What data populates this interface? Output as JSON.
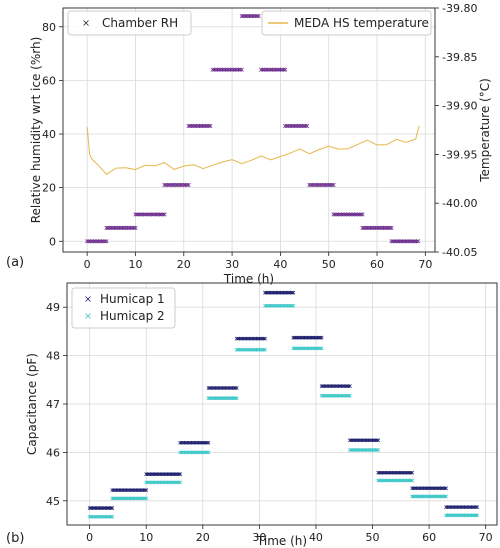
{
  "chart_data": [
    {
      "type": "scatter",
      "panel_label": "(a)",
      "xlabel": "Time (h)",
      "ylabel": "Relative humidity wrt ice (%rh)",
      "y2label": "Temperature (°C)",
      "xlim": [
        -5,
        72
      ],
      "ylim": [
        -4,
        87
      ],
      "y2lim": [
        -40.05,
        -39.8
      ],
      "xticks": [
        0,
        10,
        20,
        30,
        40,
        50,
        60,
        70
      ],
      "yticks": [
        0,
        20,
        40,
        60,
        80
      ],
      "y2ticks": [
        "-39.80",
        "-39.85",
        "-39.90",
        "-39.95",
        "-40.00",
        "-40.05"
      ],
      "grid": true,
      "legend": "top",
      "series": [
        {
          "name": "Chamber RH",
          "color": "#6a2a8c",
          "marker": "x",
          "steps": [
            {
              "x0": 0,
              "x1": 4,
              "y": 0
            },
            {
              "x0": 4,
              "x1": 10,
              "y": 5
            },
            {
              "x0": 10,
              "x1": 16,
              "y": 10
            },
            {
              "x0": 16,
              "x1": 21,
              "y": 21
            },
            {
              "x0": 21,
              "x1": 25.5,
              "y": 43
            },
            {
              "x0": 26,
              "x1": 32,
              "y": 64
            },
            {
              "x0": 32,
              "x1": 35.5,
              "y": 84
            },
            {
              "x0": 36,
              "x1": 41,
              "y": 64
            },
            {
              "x0": 41,
              "x1": 45.5,
              "y": 43
            },
            {
              "x0": 46,
              "x1": 51,
              "y": 21
            },
            {
              "x0": 51,
              "x1": 57,
              "y": 10
            },
            {
              "x0": 57,
              "x1": 63,
              "y": 5
            },
            {
              "x0": 63,
              "x1": 68.5,
              "y": 0
            }
          ]
        },
        {
          "name": "MEDA HS temperature",
          "color": "#e6b84a",
          "axis": "right",
          "x": [
            0,
            0.5,
            1,
            2,
            4,
            6,
            8,
            10,
            12,
            14,
            16,
            18,
            20,
            22,
            24,
            26,
            28,
            30,
            32,
            34,
            36,
            38,
            40,
            42,
            44,
            46,
            48,
            50,
            52,
            54,
            56,
            58,
            60,
            62,
            64,
            66,
            68,
            68.7
          ],
          "y": [
            -39.922,
            -39.95,
            -39.955,
            -39.963,
            -39.968,
            -39.964,
            -39.966,
            -39.962,
            -39.96,
            -39.963,
            -39.962,
            -39.963,
            -39.962,
            -39.963,
            -39.961,
            -39.96,
            -39.959,
            -39.959,
            -39.957,
            -39.956,
            -39.954,
            -39.952,
            -39.951,
            -39.95,
            -39.948,
            -39.947,
            -39.945,
            -39.944,
            -39.941,
            -39.943,
            -39.941,
            -39.939,
            -39.938,
            -39.94,
            -39.937,
            -39.934,
            -39.933,
            -39.922
          ]
        }
      ]
    },
    {
      "type": "scatter",
      "panel_label": "(b)",
      "xlabel": "Time (h)",
      "ylabel": "Capacitance (pF)",
      "xlim": [
        -4,
        72
      ],
      "ylim": [
        44.5,
        49.5
      ],
      "xticks": [
        0,
        10,
        20,
        30,
        40,
        50,
        60,
        70
      ],
      "yticks": [
        45,
        46,
        47,
        48,
        49
      ],
      "grid": true,
      "legend": "top-left",
      "series": [
        {
          "name": "Humicap 1",
          "color": "#1e1f6e",
          "marker": "x",
          "steps": [
            {
              "x0": 0,
              "x1": 4,
              "y": 44.85
            },
            {
              "x0": 4,
              "x1": 10,
              "y": 45.22
            },
            {
              "x0": 10,
              "x1": 16,
              "y": 45.55
            },
            {
              "x0": 16,
              "x1": 21,
              "y": 46.2
            },
            {
              "x0": 21,
              "x1": 26,
              "y": 47.33
            },
            {
              "x0": 26,
              "x1": 31,
              "y": 48.35
            },
            {
              "x0": 31,
              "x1": 36,
              "y": 49.3
            },
            {
              "x0": 36,
              "x1": 41,
              "y": 48.37
            },
            {
              "x0": 41,
              "x1": 46,
              "y": 47.37
            },
            {
              "x0": 46,
              "x1": 51,
              "y": 46.25
            },
            {
              "x0": 51,
              "x1": 57,
              "y": 45.58
            },
            {
              "x0": 57,
              "x1": 63,
              "y": 45.26
            },
            {
              "x0": 63,
              "x1": 68.5,
              "y": 44.87
            }
          ]
        },
        {
          "name": "Humicap 2",
          "color": "#3ec7c7",
          "marker": "x",
          "steps": [
            {
              "x0": 0,
              "x1": 4,
              "y": 44.67
            },
            {
              "x0": 4,
              "x1": 10,
              "y": 45.05
            },
            {
              "x0": 10,
              "x1": 16,
              "y": 45.38
            },
            {
              "x0": 16,
              "x1": 21,
              "y": 46.0
            },
            {
              "x0": 21,
              "x1": 26,
              "y": 47.12
            },
            {
              "x0": 26,
              "x1": 31,
              "y": 48.12
            },
            {
              "x0": 31,
              "x1": 36,
              "y": 49.03
            },
            {
              "x0": 36,
              "x1": 41,
              "y": 48.15
            },
            {
              "x0": 41,
              "x1": 46,
              "y": 47.17
            },
            {
              "x0": 46,
              "x1": 51,
              "y": 46.05
            },
            {
              "x0": 51,
              "x1": 57,
              "y": 45.42
            },
            {
              "x0": 57,
              "x1": 63,
              "y": 45.09
            },
            {
              "x0": 63,
              "x1": 68.5,
              "y": 44.7
            }
          ]
        }
      ]
    }
  ]
}
